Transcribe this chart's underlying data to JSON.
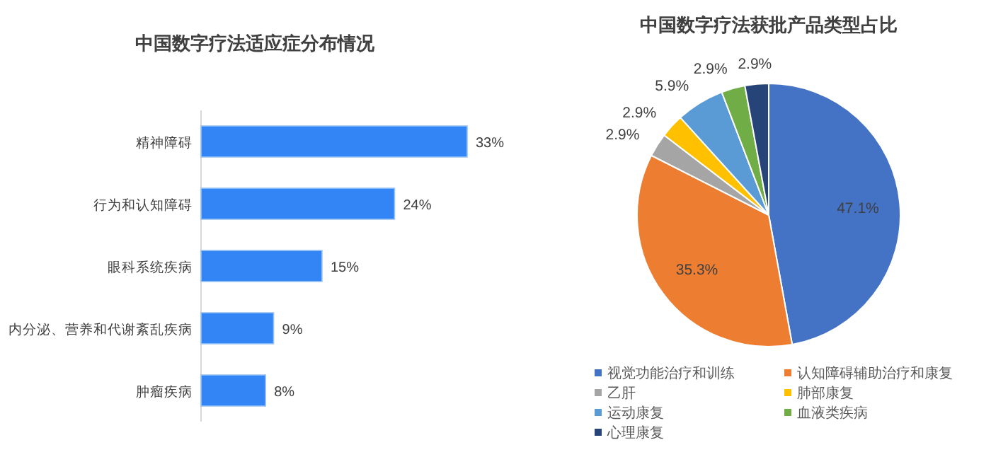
{
  "chart_data": [
    {
      "type": "bar",
      "orientation": "horizontal",
      "title": "中国数字疗法适应症分布情况",
      "categories": [
        "精神障碍",
        "行为和认知障碍",
        "眼科系统疾病",
        "内分泌、营养和代谢紊乱疾病",
        "肿瘤疾病"
      ],
      "values": [
        33,
        24,
        15,
        9,
        8
      ],
      "value_labels": [
        "33%",
        "24%",
        "15%",
        "9%",
        "8%"
      ],
      "color": "#3385f5"
    },
    {
      "type": "pie",
      "title": "中国数字疗法获批产品类型占比",
      "categories": [
        "视觉功能治疗和训练",
        "认知障碍辅助治疗和康复",
        "乙肝",
        "肺部康复",
        "运动康复",
        "血液类疾病",
        "心理康复"
      ],
      "values": [
        47.1,
        35.3,
        2.9,
        2.9,
        5.9,
        2.9,
        2.9
      ],
      "value_labels": [
        "47.1%",
        "35.3%",
        "2.9%",
        "2.9%",
        "5.9%",
        "2.9%",
        "2.9%"
      ],
      "colors": [
        "#4472c4",
        "#ed7d31",
        "#a5a5a5",
        "#ffc000",
        "#5b9bd5",
        "#70ad47",
        "#264478"
      ],
      "legend": "bottom"
    }
  ]
}
